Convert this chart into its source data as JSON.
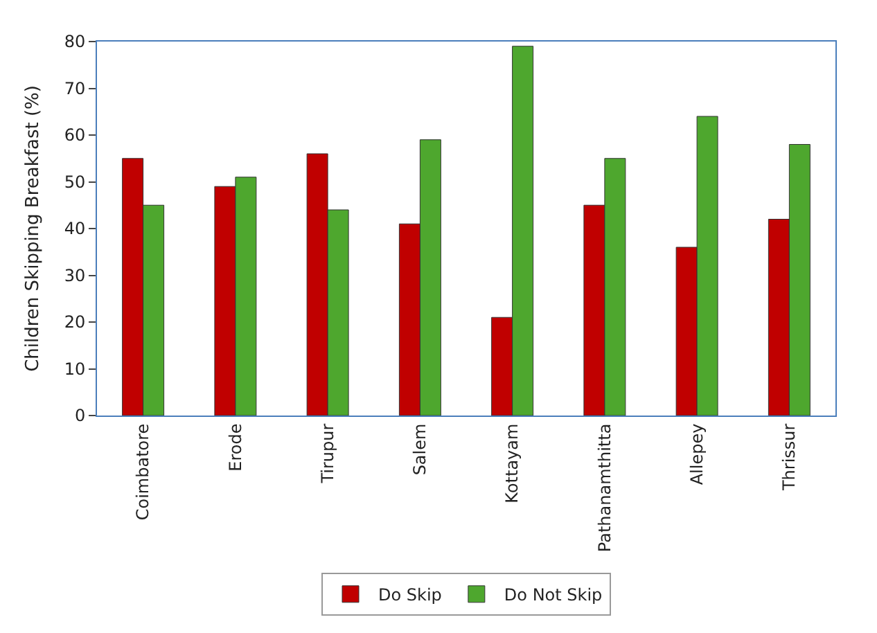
{
  "chart_data": {
    "type": "bar",
    "ylabel": "Children Skipping Breakfast (%)",
    "categories": [
      "Coimbatore",
      "Erode",
      "Tirupur",
      "Salem",
      "Kottayam",
      "Pathanamthitta",
      "Allepey",
      "Thrissur"
    ],
    "series": [
      {
        "name": "Do Skip",
        "color": "#c00000",
        "values": [
          55,
          49,
          56,
          41,
          21,
          45,
          36,
          42
        ]
      },
      {
        "name": "Do Not Skip",
        "color": "#4ea72e",
        "values": [
          45,
          51,
          44,
          59,
          79,
          55,
          64,
          58
        ]
      }
    ],
    "ylim": [
      0,
      80
    ],
    "yticks": [
      0,
      10,
      20,
      30,
      40,
      50,
      60,
      70,
      80
    ],
    "legend": "bottom"
  }
}
